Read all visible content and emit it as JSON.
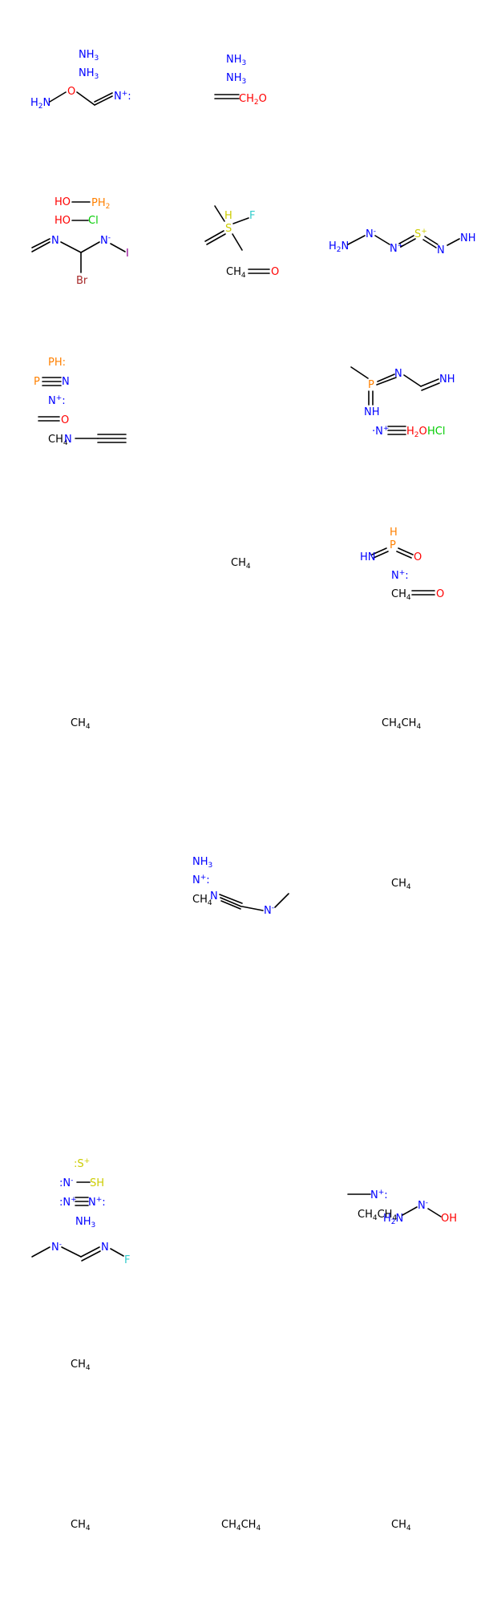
{
  "colors": {
    "N": "#0000FF",
    "O": "#FF0000",
    "P": "#FF8000",
    "S": "#CCCC00",
    "F": "#33CCCC",
    "Cl": "#00CC00",
    "Br": "#A62929",
    "I": "#940094",
    "C": "#000000",
    "bond": "#000000"
  },
  "molecules": [
    {
      "id": 1,
      "labels": [
        "NH3",
        "NH3",
        "H2N",
        "O",
        "N+:"
      ]
    },
    {
      "id": 2,
      "labels": [
        "NH3",
        "NH3",
        "CH2",
        "H2O"
      ]
    },
    {
      "id": 3,
      "labels": []
    },
    {
      "id": 4,
      "labels": [
        "HO",
        "PH2",
        "HO",
        "Cl",
        "N",
        "N-",
        "I",
        "Br"
      ]
    },
    {
      "id": 5,
      "labels": [
        "S",
        "H",
        "F",
        "CH4",
        "O"
      ]
    },
    {
      "id": 6,
      "labels": [
        "H2N",
        "N-",
        "N+",
        "S+",
        "N",
        "NH"
      ]
    },
    {
      "id": 7,
      "labels": [
        "PH:",
        "P",
        "N",
        "N+:",
        "O",
        "CH4",
        "N"
      ]
    },
    {
      "id": 8,
      "labels": []
    },
    {
      "id": 9,
      "labels": [
        "P",
        "N",
        "NH",
        "NH",
        "·N+",
        "H2O",
        "HCl"
      ]
    },
    {
      "id": 10,
      "labels": []
    },
    {
      "id": 11,
      "labels": [
        "CH4"
      ]
    },
    {
      "id": 12,
      "labels": [
        "H",
        "P",
        "HN",
        "O",
        "N+:",
        "CH4",
        "O"
      ]
    },
    {
      "id": 13,
      "labels": [
        "CH4"
      ]
    },
    {
      "id": 14,
      "labels": []
    },
    {
      "id": 15,
      "labels": [
        "CH4CH4"
      ]
    },
    {
      "id": 16,
      "labels": []
    },
    {
      "id": 17,
      "labels": [
        "NH3",
        "N+:",
        "CH4",
        "N",
        "N-"
      ]
    },
    {
      "id": 18,
      "labels": [
        "CH4"
      ]
    },
    {
      "id": 19,
      "labels": []
    },
    {
      "id": 20,
      "labels": []
    },
    {
      "id": 21,
      "labels": []
    },
    {
      "id": 22,
      "labels": [
        ":S+",
        ":N-",
        "SH",
        ":N+",
        "N+:",
        "NH3",
        "N-",
        "N",
        "F"
      ]
    },
    {
      "id": 23,
      "labels": []
    },
    {
      "id": 24,
      "labels": [
        "N+:",
        "CH4CH4",
        "H2N",
        "N-",
        "OH"
      ]
    },
    {
      "id": 25,
      "labels": [
        "CH4"
      ]
    },
    {
      "id": 26,
      "labels": []
    },
    {
      "id": 27,
      "labels": []
    },
    {
      "id": 28,
      "labels": [
        "CH4"
      ]
    },
    {
      "id": 29,
      "labels": [
        "CH4CH4"
      ]
    },
    {
      "id": 30,
      "labels": [
        "CH4"
      ]
    }
  ]
}
